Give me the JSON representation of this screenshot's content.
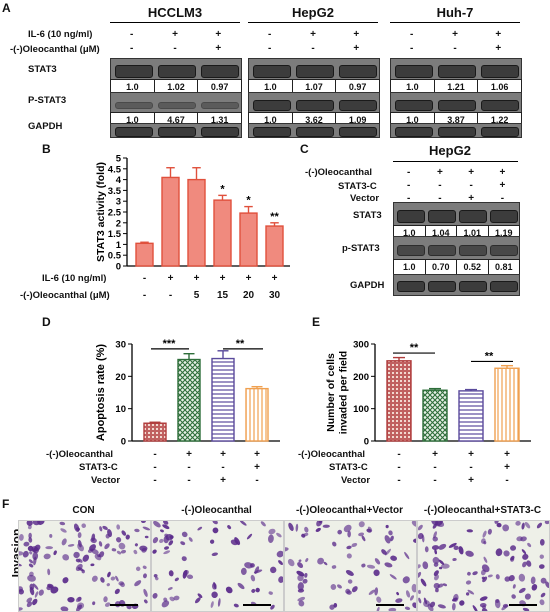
{
  "panelA": {
    "label": "A",
    "row_labels": {
      "il6": "IL-6 (10 ng/ml)",
      "oleo": "-(-)Oleocanthal (μM)",
      "stat3": "STAT3",
      "pstat3": "P-STAT3",
      "gapdh": "GAPDH"
    },
    "blots": [
      {
        "title": "HCCLM3",
        "il6": [
          "-",
          "+",
          "+"
        ],
        "oleo": [
          "-",
          "-",
          "+"
        ],
        "stat3": [
          "1.0",
          "1.02",
          "0.97"
        ],
        "pstat3": [
          "1.0",
          "4.67",
          "1.31"
        ]
      },
      {
        "title": "HepG2",
        "il6": [
          "-",
          "+",
          "+"
        ],
        "oleo": [
          "-",
          "-",
          "+"
        ],
        "stat3": [
          "1.0",
          "1.07",
          "0.97"
        ],
        "pstat3": [
          "1.0",
          "3.62",
          "1.09"
        ]
      },
      {
        "title": "Huh-7",
        "il6": [
          "-",
          "+",
          "+"
        ],
        "oleo": [
          "-",
          "-",
          "+"
        ],
        "stat3": [
          "1.0",
          "1.21",
          "1.06"
        ],
        "pstat3": [
          "1.0",
          "3.87",
          "1.22"
        ]
      }
    ]
  },
  "panelB": {
    "label": "B",
    "row1_label": "IL-6 (10 ng/ml)",
    "row2_label": "-(-)Oleocanthal (μM)",
    "row1": [
      "-",
      "+",
      "+",
      "+",
      "+",
      "+"
    ],
    "row2": [
      "-",
      "-",
      "5",
      "15",
      "20",
      "30"
    ],
    "significance": [
      "",
      "",
      "",
      "*",
      "*",
      "**"
    ]
  },
  "panelC": {
    "label": "C",
    "title": "HepG2",
    "row_labels": {
      "oleo": "-(-)Oleocanthal",
      "stat3c": "STAT3-C",
      "vector": "Vector",
      "stat3": "STAT3",
      "pstat3": "p-STAT3",
      "gapdh": "GAPDH"
    },
    "oleo": [
      "-",
      "+",
      "+",
      "+"
    ],
    "stat3c": [
      "-",
      "-",
      "-",
      "+"
    ],
    "vector": [
      "-",
      "-",
      "+",
      "-"
    ],
    "stat3": [
      "1.0",
      "1.04",
      "1.01",
      "1.19"
    ],
    "pstat3": [
      "1.0",
      "0.70",
      "0.52",
      "0.81"
    ]
  },
  "panelD": {
    "label": "D",
    "row1_label": "-(-)Oleocanthal",
    "row2_label": "STAT3-C",
    "row3_label": "Vector",
    "row1": [
      "-",
      "+",
      "+",
      "+"
    ],
    "row2": [
      "-",
      "-",
      "-",
      "+"
    ],
    "row3": [
      "-",
      "-",
      "+",
      "-"
    ],
    "sig1": "***",
    "sig2": "**"
  },
  "panelE": {
    "label": "E",
    "row1_label": "-(-)Oleocanthal",
    "row2_label": "STAT3-C",
    "row3_label": "Vector",
    "row1": [
      "-",
      "+",
      "+",
      "+"
    ],
    "row2": [
      "-",
      "-",
      "-",
      "+"
    ],
    "row3": [
      "-",
      "-",
      "+",
      "-"
    ],
    "sig1": "**",
    "sig2": "**"
  },
  "panelF": {
    "label": "F",
    "side_label": "Invasion",
    "titles": [
      "CON",
      "-(-)Oleocanthal",
      "-(-)Oleocanthal+Vector",
      "-(-)Oleocanthal+STAT3-C"
    ]
  },
  "colors": {
    "panelB_bar": "#f08a7e",
    "panelB_bar_edge": "#e0503c",
    "red": "#b03c3c",
    "green": "#2e6e3a",
    "blue": "#5a4a9c",
    "orange": "#f0a050",
    "cell": "#5a2a8a",
    "micro_bg": "#eef0e8"
  },
  "chart_data": [
    {
      "type": "bar",
      "panel": "B",
      "ylabel": "STAT3 activity (fold)",
      "ylim": [
        0,
        5
      ],
      "yticks": [
        0,
        0.5,
        1,
        1.5,
        2,
        2.5,
        3,
        3.5,
        4,
        4.5,
        5
      ],
      "categories": [
        "1",
        "2",
        "3",
        "4",
        "5",
        "6"
      ],
      "values": [
        1.05,
        4.1,
        4.0,
        3.05,
        2.45,
        1.85
      ],
      "errors": [
        0.05,
        0.45,
        0.55,
        0.22,
        0.3,
        0.15
      ]
    },
    {
      "type": "bar",
      "panel": "D",
      "ylabel": "Apoptosis rate (%)",
      "ylim": [
        0,
        30
      ],
      "yticks": [
        0,
        10,
        20,
        30
      ],
      "categories": [
        "1",
        "2",
        "3",
        "4"
      ],
      "values": [
        5.5,
        25.2,
        25.5,
        16.2
      ],
      "errors": [
        0.3,
        1.8,
        2.4,
        0.6
      ]
    },
    {
      "type": "bar",
      "panel": "E",
      "ylabel": "Number of cells invaded per field",
      "ylim": [
        0,
        300
      ],
      "yticks": [
        0,
        100,
        200,
        300
      ],
      "categories": [
        "1",
        "2",
        "3",
        "4"
      ],
      "values": [
        248,
        157,
        155,
        225
      ],
      "errors": [
        10,
        5,
        4,
        8
      ]
    }
  ]
}
